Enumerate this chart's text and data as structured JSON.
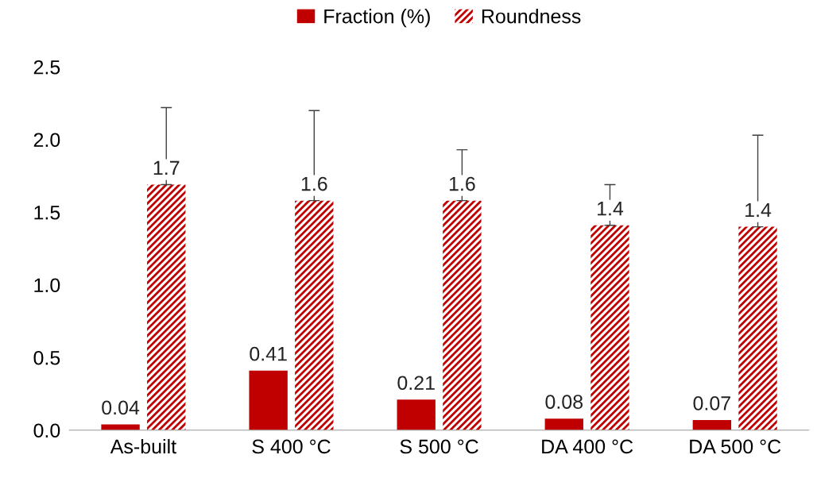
{
  "chart_data": {
    "type": "bar",
    "categories": [
      "As-built",
      "S 400 °C",
      "S 500 °C",
      "DA 400 °C",
      "DA 500 °C"
    ],
    "series": [
      {
        "name": "Fraction (%)",
        "color": "#c00000",
        "values": [
          0.04,
          0.41,
          0.21,
          0.08,
          0.07
        ],
        "value_labels": [
          "0.04",
          "0.41",
          "0.21",
          "0.08",
          "0.07"
        ]
      },
      {
        "name": "Roundness",
        "color": "#c00000",
        "values": [
          1.69,
          1.58,
          1.58,
          1.41,
          1.4
        ],
        "value_labels": [
          "1.7",
          "1.6",
          "1.6",
          "1.4",
          "1.4"
        ],
        "errors": [
          [
            1.69,
            2.22
          ],
          [
            1.58,
            2.2
          ],
          [
            1.58,
            1.93
          ],
          [
            1.41,
            1.69
          ],
          [
            1.4,
            2.03
          ]
        ]
      }
    ],
    "ylim": [
      0,
      2.5
    ],
    "yticks": [
      {
        "value": 0,
        "label": "0.0"
      },
      0.5,
      {
        "value": 1,
        "label": "1.0"
      },
      1.5,
      {
        "value": 2,
        "label": "2.0"
      },
      2.5
    ],
    "grid": false,
    "legend": "top"
  }
}
